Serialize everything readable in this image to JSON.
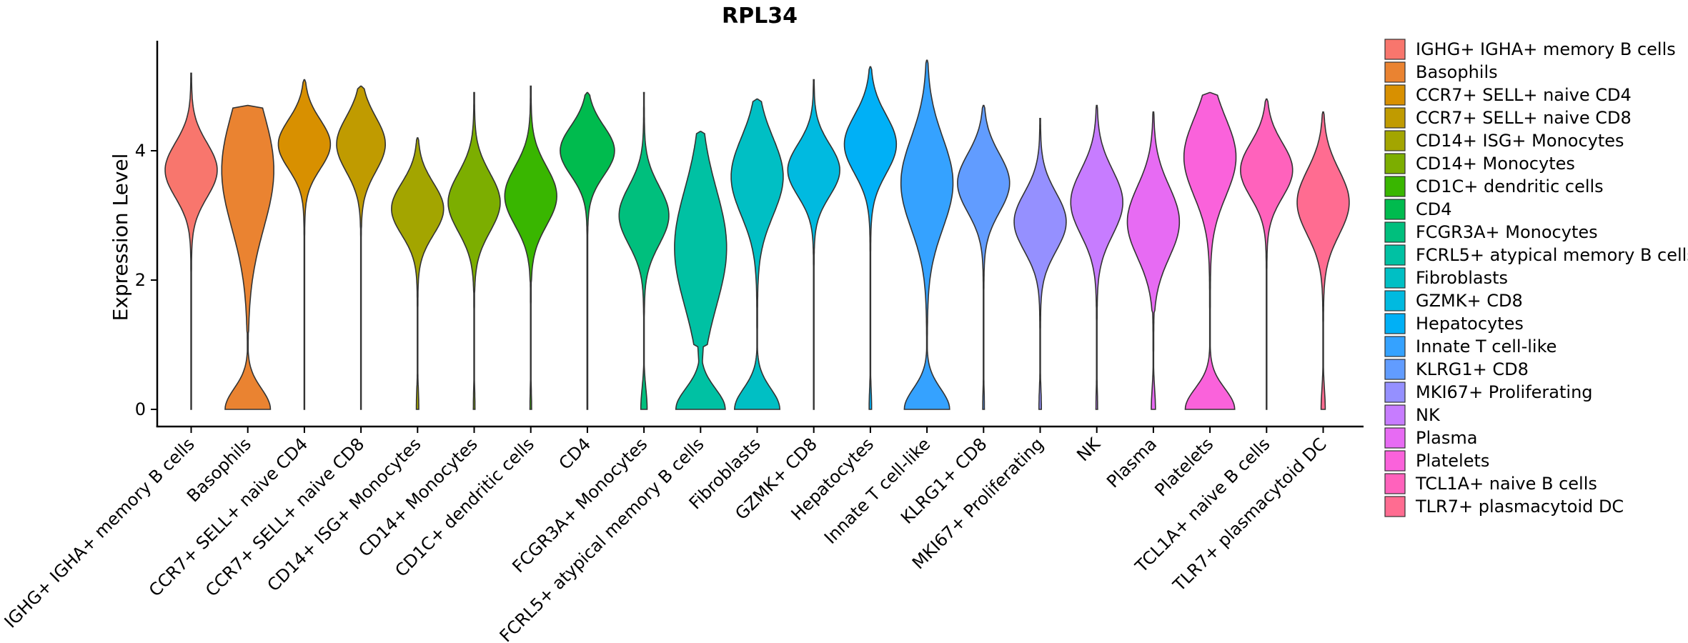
{
  "chart_data": {
    "type": "violin",
    "title": "RPL34",
    "xlabel": "",
    "ylabel": "Expression Level",
    "ylim": [
      -0.3,
      5.7
    ],
    "yticks": [
      0,
      2,
      4
    ],
    "legend_position": "right",
    "grid": false,
    "categories": [
      {
        "name": "IGHG+ IGHA+ memory B cells",
        "legend_label": " IGHG+ IGHA+ memory B cells",
        "color": "#F8766D",
        "max": 5.2,
        "zero_frac": 0.0,
        "mode": 3.7,
        "spread": 0.42,
        "width": 0.46,
        "low_neck": 2.3
      },
      {
        "name": "Basophils",
        "legend_label": "Basophils",
        "color": "#EA8331",
        "max": 4.7,
        "zero_frac": 0.55,
        "mode": 3.7,
        "spread": 0.9,
        "width": 0.46,
        "low_neck": 1.2,
        "flat_top": true
      },
      {
        "name": "CCR7+ SELL+ naive CD4",
        "legend_label": "CCR7+ SELL+ naive CD4",
        "color": "#D89000",
        "max": 5.1,
        "zero_frac": 0.0,
        "mode": 4.1,
        "spread": 0.38,
        "width": 0.46,
        "low_neck": 2.8
      },
      {
        "name": "CCR7+ SELL+ naive CD8",
        "legend_label": "CCR7+ SELL+ naive CD8",
        "color": "#C09B00",
        "max": 5.0,
        "zero_frac": 0.0,
        "mode": 4.1,
        "spread": 0.42,
        "width": 0.43,
        "low_neck": 2.8
      },
      {
        "name": "CD14+ ISG+ Monocytes",
        "legend_label": "CD14+ ISG+ Monocytes",
        "color": "#A3A500",
        "max": 4.2,
        "zero_frac": 0.03,
        "mode": 3.1,
        "spread": 0.4,
        "width": 0.46,
        "low_neck": 1.6
      },
      {
        "name": "CD14+ Monocytes",
        "legend_label": "CD14+ Monocytes",
        "color": "#7CAE00",
        "max": 4.9,
        "zero_frac": 0.02,
        "mode": 3.2,
        "spread": 0.45,
        "width": 0.46,
        "low_neck": 1.8
      },
      {
        "name": "CD1C+ dendritic cells",
        "legend_label": "CD1C+ dendritic cells",
        "color": "#39B600",
        "max": 5.0,
        "zero_frac": 0.02,
        "mode": 3.3,
        "spread": 0.45,
        "width": 0.46,
        "low_neck": 2.0
      },
      {
        "name": "CD4",
        "legend_label": "CD4",
        "color": "#00BB4E",
        "max": 4.9,
        "zero_frac": 0.0,
        "mode": 4.0,
        "spread": 0.38,
        "width": 0.48,
        "low_neck": 2.7
      },
      {
        "name": "FCGR3A+ Monocytes",
        "legend_label": "FCGR3A+ Monocytes",
        "color": "#00BF7D",
        "max": 4.9,
        "zero_frac": 0.08,
        "mode": 3.0,
        "spread": 0.45,
        "width": 0.44,
        "low_neck": 1.5
      },
      {
        "name": "FCRL5+ atypical memory B cells",
        "legend_label": "FCRL5+ atypical memory B cells",
        "color": "#00C1A3",
        "max": 4.3,
        "zero_frac": 0.6,
        "mode": 2.5,
        "spread": 0.9,
        "width": 0.46,
        "low_neck": 1.0
      },
      {
        "name": "Fibroblasts",
        "legend_label": "Fibroblasts",
        "color": "#00BFC4",
        "max": 4.8,
        "zero_frac": 0.55,
        "mode": 3.6,
        "spread": 0.6,
        "width": 0.46,
        "low_neck": 1.0
      },
      {
        "name": "GZMK+ CD8",
        "legend_label": "GZMK+ CD8",
        "color": "#00BAE0",
        "max": 5.1,
        "zero_frac": 0.0,
        "mode": 3.7,
        "spread": 0.4,
        "width": 0.46,
        "low_neck": 2.4
      },
      {
        "name": "Hepatocytes",
        "legend_label": "Hepatocytes",
        "color": "#00B0F6",
        "max": 5.3,
        "zero_frac": 0.03,
        "mode": 4.1,
        "spread": 0.45,
        "width": 0.46,
        "low_neck": 2.5
      },
      {
        "name": "Innate T cell-like",
        "legend_label": "Innate T cell-like",
        "color": "#35A2FF",
        "max": 5.4,
        "zero_frac": 0.55,
        "mode": 3.5,
        "spread": 0.7,
        "width": 0.46,
        "low_neck": 1.0
      },
      {
        "name": "KLRG1+ CD8",
        "legend_label": "KLRG1+ CD8",
        "color": "#619CFF",
        "max": 4.7,
        "zero_frac": 0.02,
        "mode": 3.5,
        "spread": 0.45,
        "width": 0.46,
        "low_neck": 1.9
      },
      {
        "name": "MKI67+ Proliferating",
        "legend_label": "MKI67+ Proliferating",
        "color": "#9590FF",
        "max": 4.5,
        "zero_frac": 0.03,
        "mode": 2.9,
        "spread": 0.45,
        "width": 0.46,
        "low_neck": 1.3
      },
      {
        "name": "NK",
        "legend_label": "NK",
        "color": "#C77CFF",
        "max": 4.7,
        "zero_frac": 0.02,
        "mode": 3.2,
        "spread": 0.5,
        "width": 0.46,
        "low_neck": 1.6
      },
      {
        "name": "Plasma",
        "legend_label": "Plasma",
        "color": "#E76BF3",
        "max": 4.6,
        "zero_frac": 0.05,
        "mode": 2.9,
        "spread": 0.55,
        "width": 0.46,
        "low_neck": 1.5
      },
      {
        "name": "Platelets",
        "legend_label": "Platelets",
        "color": "#FA62DB",
        "max": 4.9,
        "zero_frac": 0.6,
        "mode": 3.9,
        "spread": 0.6,
        "width": 0.46,
        "low_neck": 1.0
      },
      {
        "name": "TCL1A+ naive B cells",
        "legend_label": "TCL1A+ naive B cells",
        "color": "#FF62BC",
        "max": 4.8,
        "zero_frac": 0.0,
        "mode": 3.7,
        "spread": 0.42,
        "width": 0.46,
        "low_neck": 2.3
      },
      {
        "name": "TLR7+ plasmacytoid DC",
        "legend_label": "TLR7+ plasmacytoid DC",
        "color": "#FF6C91",
        "max": 4.6,
        "zero_frac": 0.05,
        "mode": 3.2,
        "spread": 0.5,
        "width": 0.46,
        "low_neck": 1.5
      }
    ]
  }
}
